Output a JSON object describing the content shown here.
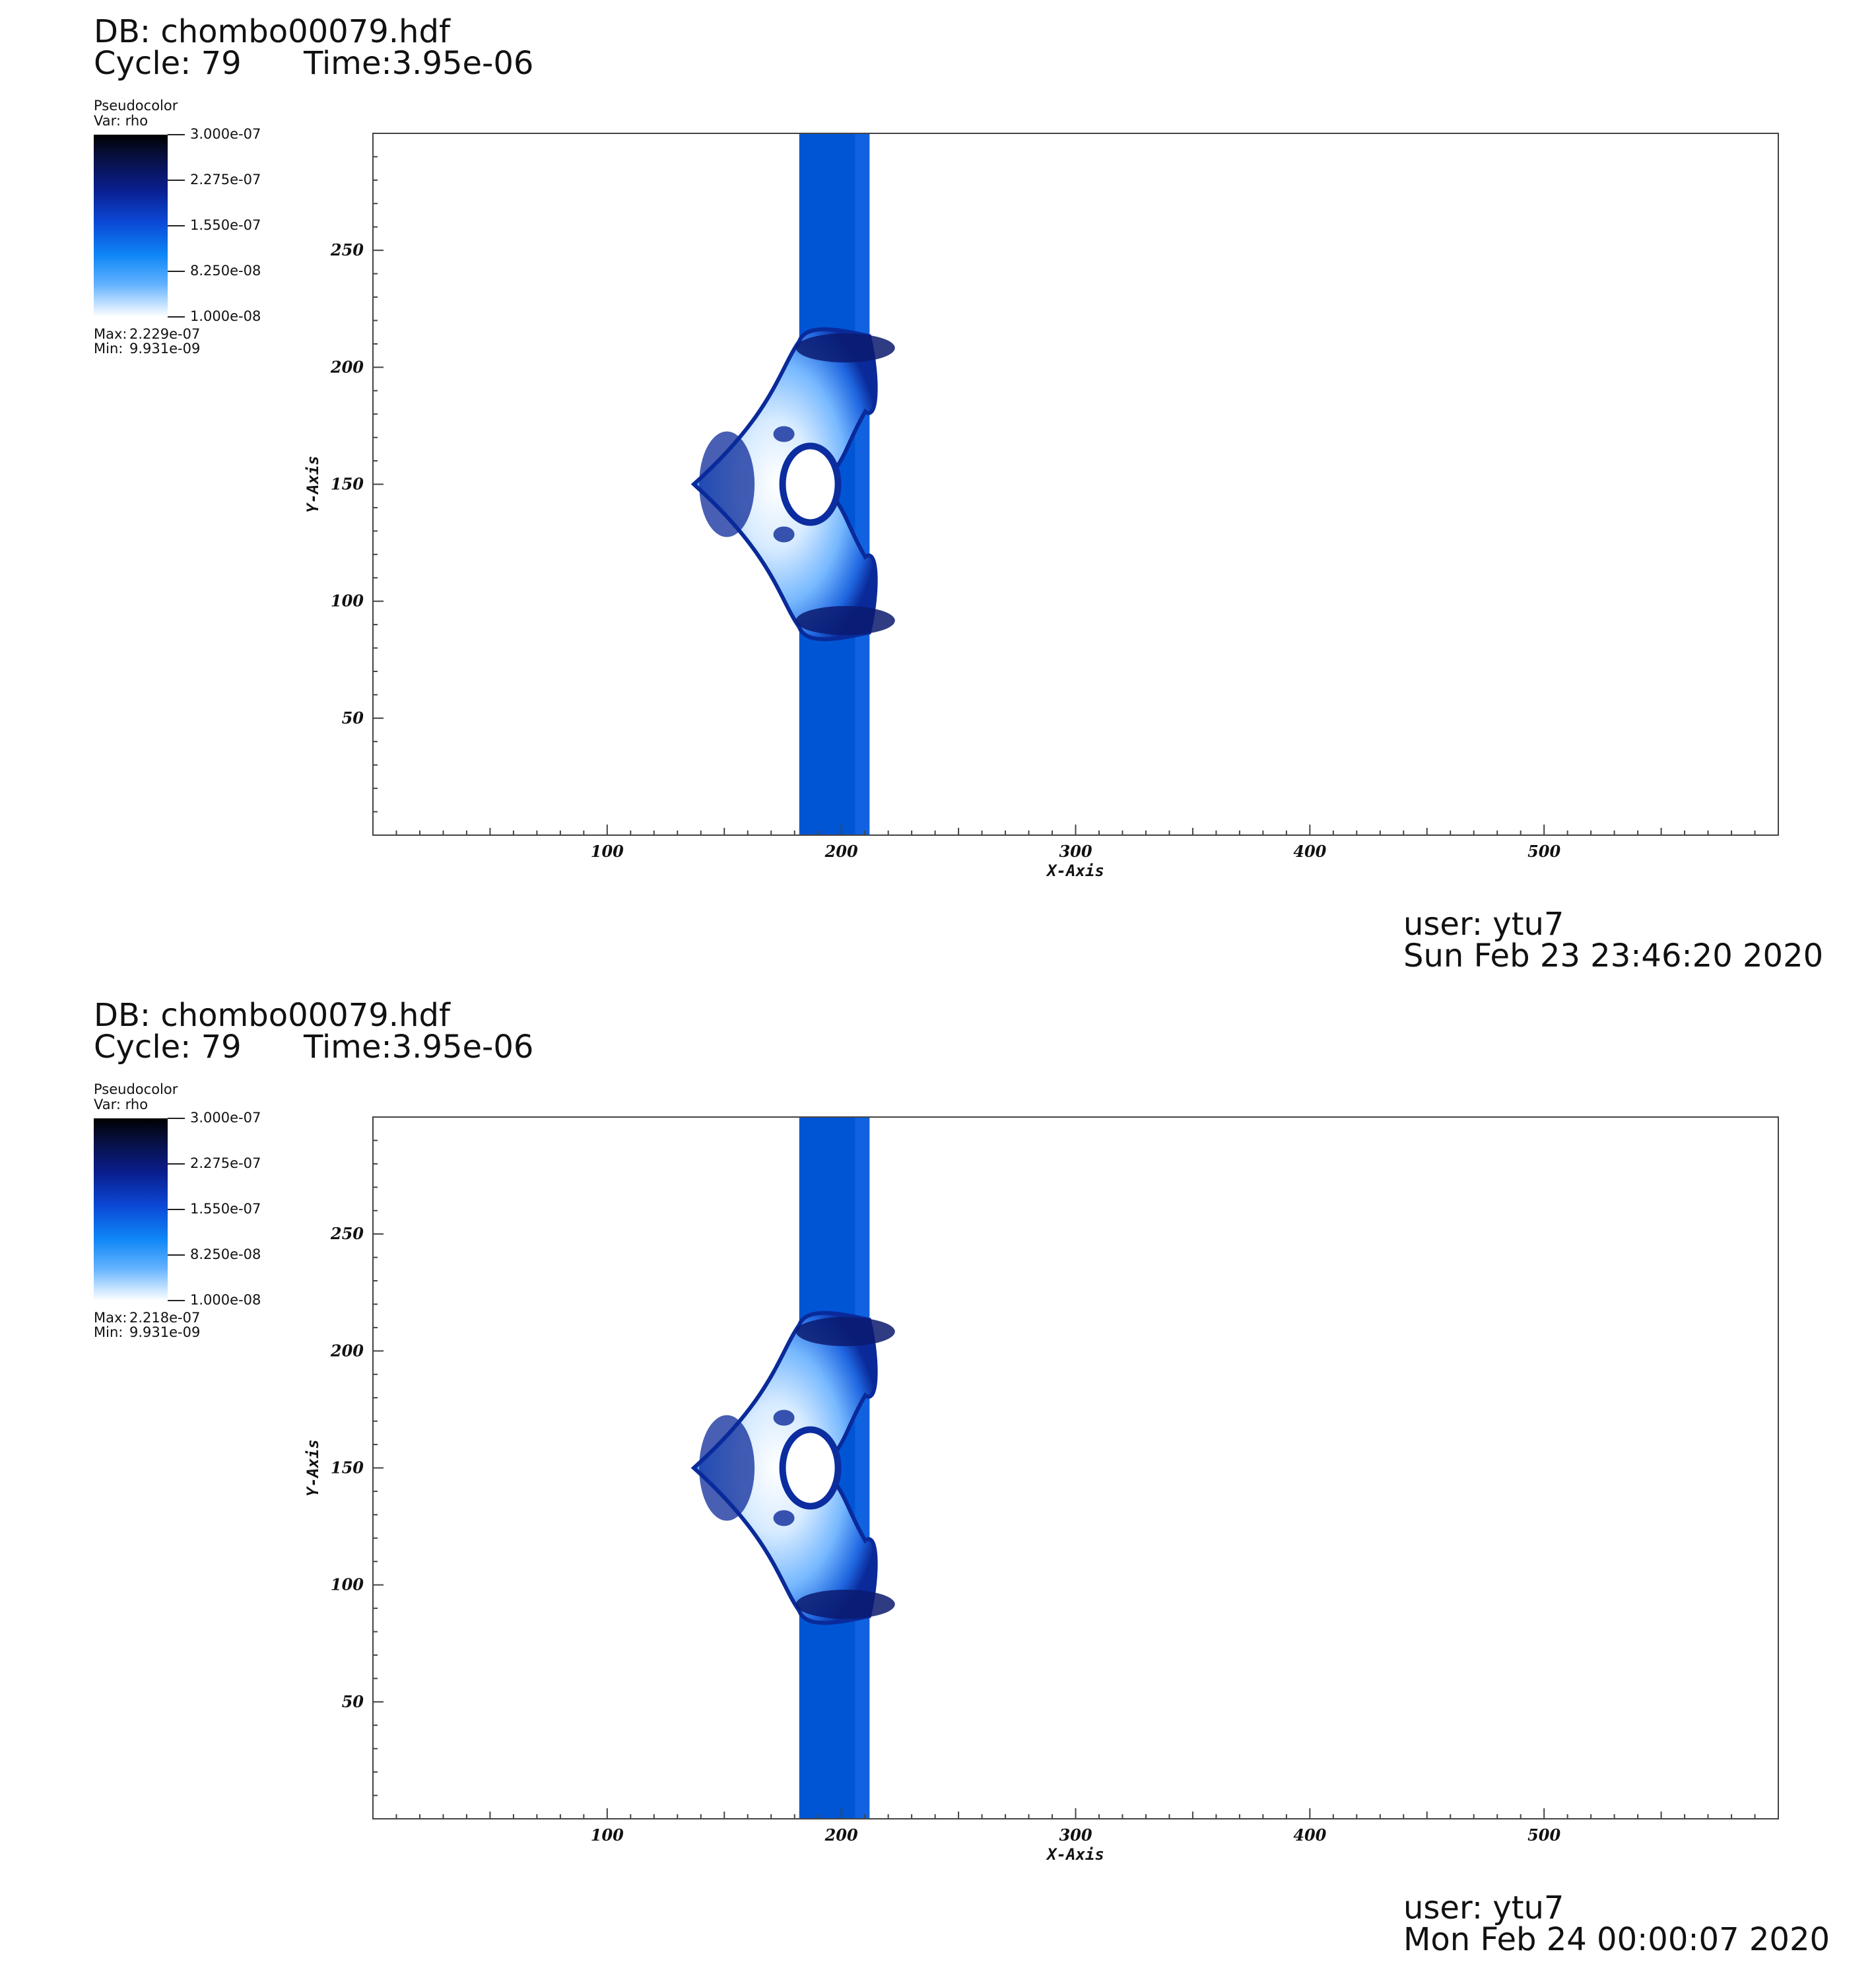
{
  "panels": [
    {
      "db": "DB: chombo00079.hdf",
      "cycle": "Cycle: 79",
      "time": "Time:3.95e-06",
      "legend": {
        "plot_type": "Pseudocolor",
        "var": "Var: rho",
        "ticks": [
          "3.000e-07",
          "2.275e-07",
          "1.550e-07",
          "8.250e-08",
          "1.000e-08"
        ],
        "max_label": "Max:",
        "max_value": "2.229e-07",
        "min_label": "Min:",
        "min_value": "9.931e-09"
      },
      "user": "user: ytu7",
      "date": "Sun Feb 23 23:46:20 2020"
    },
    {
      "db": "DB: chombo00079.hdf",
      "cycle": "Cycle: 79",
      "time": "Time:3.95e-06",
      "legend": {
        "plot_type": "Pseudocolor",
        "var": "Var: rho",
        "ticks": [
          "3.000e-07",
          "2.275e-07",
          "1.550e-07",
          "8.250e-08",
          "1.000e-08"
        ],
        "max_label": "Max:",
        "max_value": "2.218e-07",
        "min_label": "Min:",
        "min_value": "9.931e-09"
      },
      "user": "user: ytu7",
      "date": "Mon Feb 24 00:00:07 2020"
    }
  ],
  "chart_data": [
    {
      "type": "heatmap",
      "variable": "rho",
      "xlabel": "X-Axis",
      "ylabel": "Y-Axis",
      "xlim": [
        0,
        600
      ],
      "ylim": [
        0,
        300
      ],
      "xticks": [
        100,
        200,
        300,
        400,
        500
      ],
      "yticks": [
        50,
        100,
        150,
        200,
        250
      ],
      "color_range": [
        1e-08,
        3e-07
      ],
      "colormap": [
        "#000000",
        "#0a1e8e",
        "#0b48d6",
        "#0e86f6",
        "#ffffff"
      ],
      "band_color": "#0055d4",
      "band_x": [
        182,
        212
      ],
      "bubble_center": [
        198,
        150
      ],
      "bubble_x_extent": [
        137,
        213
      ],
      "bubble_y_extent": [
        81,
        219
      ]
    },
    {
      "type": "heatmap",
      "variable": "rho",
      "xlabel": "X-Axis",
      "ylabel": "Y-Axis",
      "xlim": [
        0,
        600
      ],
      "ylim": [
        0,
        300
      ],
      "xticks": [
        100,
        200,
        300,
        400,
        500
      ],
      "yticks": [
        50,
        100,
        150,
        200,
        250
      ],
      "color_range": [
        1e-08,
        3e-07
      ],
      "colormap": [
        "#000000",
        "#0a1e8e",
        "#0b48d6",
        "#0e86f6",
        "#ffffff"
      ],
      "band_color": "#0055d4",
      "band_x": [
        182,
        212
      ],
      "bubble_center": [
        198,
        150
      ],
      "bubble_x_extent": [
        137,
        213
      ],
      "bubble_y_extent": [
        81,
        219
      ]
    }
  ]
}
